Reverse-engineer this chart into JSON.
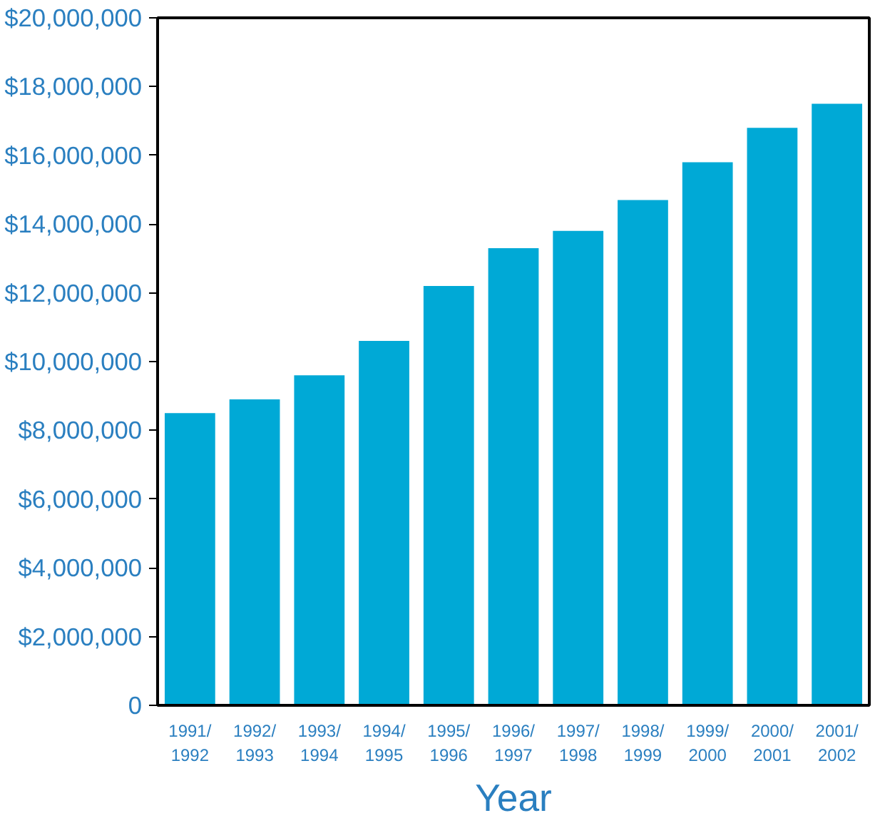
{
  "chart_data": {
    "type": "bar",
    "xlabel": "Year",
    "categories": [
      "1991/\n1992",
      "1992/\n1993",
      "1993/\n1994",
      "1994/\n1995",
      "1995/\n1996",
      "1996/\n1997",
      "1997/\n1998",
      "1998/\n1999",
      "1999/\n2000",
      "2000/\n2001",
      "2001/\n2002"
    ],
    "values": [
      8500000,
      8900000,
      9600000,
      10600000,
      12200000,
      13300000,
      13800000,
      14700000,
      15800000,
      16800000,
      17500000
    ],
    "color": "#00a9d6",
    "ylim": [
      0,
      20000000
    ],
    "yticks": [
      {
        "value": 0,
        "label": "0"
      },
      {
        "value": 2000000,
        "label": "$2,000,000"
      },
      {
        "value": 4000000,
        "label": "$4,000,000"
      },
      {
        "value": 6000000,
        "label": "$6,000,000"
      },
      {
        "value": 8000000,
        "label": "$8,000,000"
      },
      {
        "value": 10000000,
        "label": "$10,000,000"
      },
      {
        "value": 12000000,
        "label": "$12,000,000"
      },
      {
        "value": 14000000,
        "label": "$14,000,000"
      },
      {
        "value": 16000000,
        "label": "$16,000,000"
      },
      {
        "value": 18000000,
        "label": "$18,000,000"
      },
      {
        "value": 20000000,
        "label": "$20,000,000"
      }
    ],
    "grid": false
  }
}
